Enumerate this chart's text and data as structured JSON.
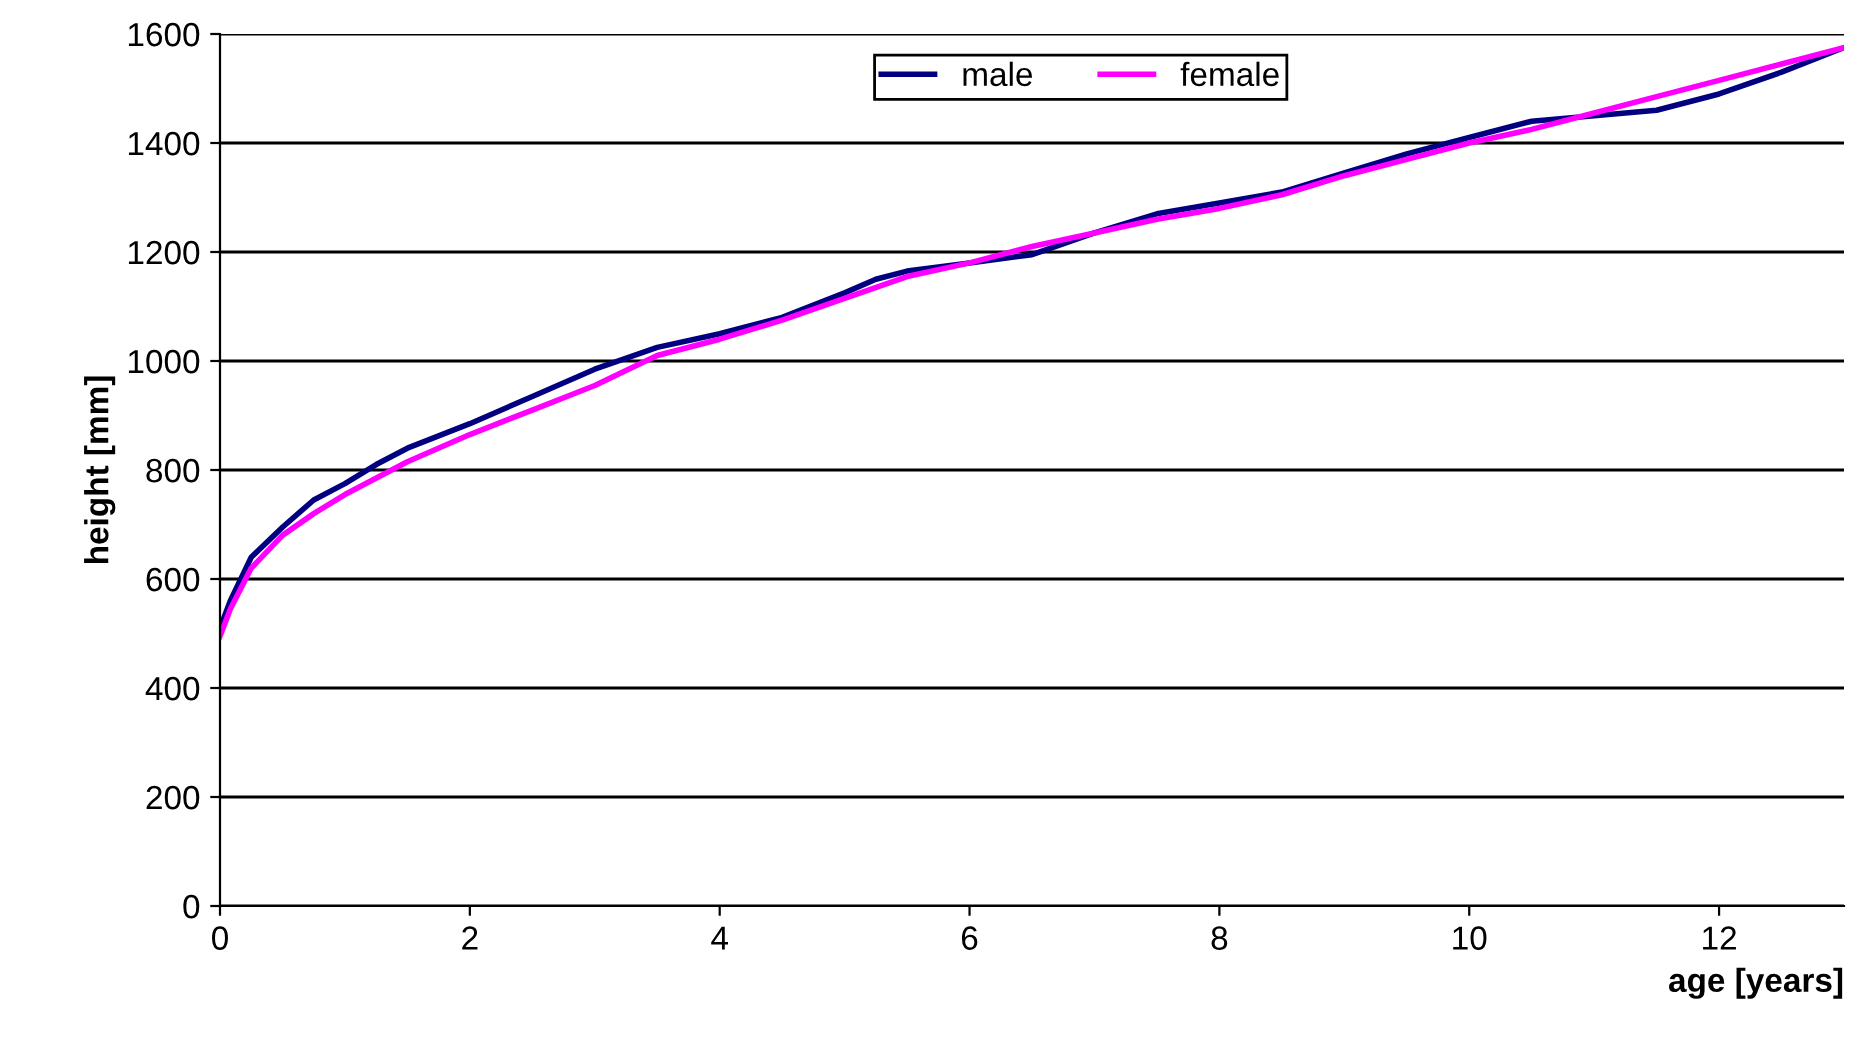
{
  "chart_data": {
    "type": "line",
    "xlabel": "age [years]",
    "ylabel": "height [mm]",
    "xlim": [
      0,
      13
    ],
    "xticks": [
      0,
      2,
      4,
      6,
      8,
      10,
      12
    ],
    "ylim": [
      0,
      1600
    ],
    "yticks": [
      0,
      200,
      400,
      600,
      800,
      1000,
      1200,
      1400,
      1600
    ],
    "grid": "y",
    "legend": "top",
    "marker": "none",
    "line_style": "solid",
    "series": [
      {
        "name": "male",
        "color": "#000080",
        "x": [
          0,
          0.083,
          0.25,
          0.5,
          0.75,
          1,
          1.25,
          1.5,
          2,
          2.5,
          3,
          3.5,
          4,
          4.5,
          5,
          5.25,
          5.5,
          6,
          6.5,
          7,
          7.5,
          8,
          8.5,
          9,
          9.5,
          10,
          10.5,
          11,
          11.5,
          12,
          12.5,
          13
        ],
        "values": [
          510,
          560,
          640,
          695,
          745,
          775,
          810,
          840,
          885,
          935,
          985,
          1025,
          1050,
          1080,
          1125,
          1150,
          1165,
          1180,
          1195,
          1235,
          1270,
          1290,
          1310,
          1345,
          1380,
          1410,
          1440,
          1450,
          1460,
          1490,
          1530,
          1575
        ]
      },
      {
        "name": "female",
        "color": "#ff00ff",
        "x": [
          0,
          0.083,
          0.25,
          0.5,
          0.75,
          1,
          1.5,
          2,
          2.5,
          3,
          3.5,
          4,
          4.5,
          5,
          5.5,
          6,
          6.5,
          7,
          7.5,
          8,
          8.5,
          9,
          9.5,
          10,
          10.5,
          11,
          11.5,
          12,
          12.5,
          13
        ],
        "values": [
          495,
          545,
          620,
          680,
          720,
          755,
          815,
          865,
          910,
          955,
          1010,
          1040,
          1075,
          1115,
          1155,
          1180,
          1210,
          1235,
          1260,
          1280,
          1305,
          1340,
          1370,
          1400,
          1425,
          1455,
          1485,
          1515,
          1545,
          1575
        ]
      }
    ]
  }
}
